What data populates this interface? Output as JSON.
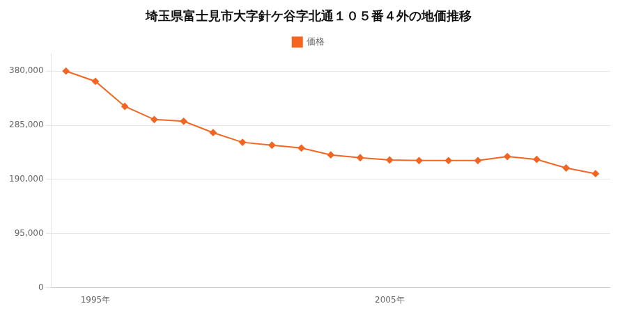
{
  "chart_data": {
    "type": "line",
    "title": "埼玉県富士見市大字針ケ谷字北通１０５番４外の地価推移",
    "x": [
      1994,
      1995,
      1996,
      1997,
      1998,
      1999,
      2000,
      2001,
      2002,
      2003,
      2004,
      2005,
      2006,
      2007,
      2008,
      2009,
      2010,
      2011,
      2012
    ],
    "series": [
      {
        "name": "価格",
        "color": "#f26522",
        "marker": "diamond",
        "values": [
          380000,
          362000,
          318000,
          295000,
          292000,
          272000,
          255000,
          250000,
          245000,
          233000,
          228000,
          224000,
          223000,
          223000,
          223000,
          230000,
          225000,
          210000,
          200000
        ]
      }
    ],
    "xlim": [
      1993.5,
      2012.5
    ],
    "xticks": [
      {
        "value": 1995,
        "label": "1995年"
      },
      {
        "value": 2005,
        "label": "2005年"
      }
    ],
    "ylim": [
      0,
      410000
    ],
    "yticks": [
      0,
      {
        "value": 95000,
        "label": "95,000"
      },
      {
        "value": 190000,
        "label": "190,000"
      },
      {
        "value": 285000,
        "label": "285,000"
      },
      {
        "value": 380000,
        "label": "380,000"
      }
    ],
    "grid": "y",
    "legend": "top"
  }
}
